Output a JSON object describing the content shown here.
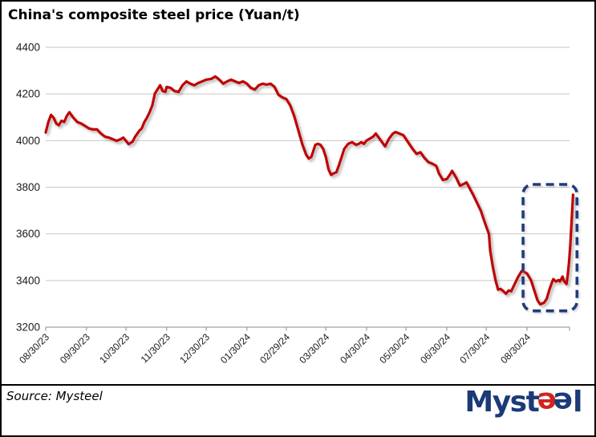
{
  "title": "China's composite steel price (Yuan/t)",
  "source_label": "Source:  Mysteel",
  "logo": {
    "prefix": "Myst",
    "e1": "e",
    "e2": "e",
    "suffix": "l",
    "navy": "#1B3A77",
    "red": "#D2231E"
  },
  "chart_data": {
    "type": "line",
    "title": "China's composite steel price (Yuan/t)",
    "ylabel": "Yuan/t",
    "ylim": [
      3200,
      4400
    ],
    "yticks": [
      3200,
      3400,
      3600,
      3800,
      4000,
      4200,
      4400
    ],
    "grid": "horizontal",
    "legend": "none",
    "line_color": "#C00000",
    "gridline_color": "#C6C6C6",
    "axis_color": "#8E8E8E",
    "annotation_box": {
      "purpose": "highlight of recent low and sharp rebound",
      "date_start": "2024-08-27",
      "date_end": "2024-10-07",
      "value_low": 3270,
      "value_high": 3812,
      "color": "#1F3D7C",
      "style": "dashed-rounded"
    },
    "xticks": [
      {
        "label": "08/30/23",
        "date": "2023-08-30"
      },
      {
        "label": "09/30/23",
        "date": "2023-09-30"
      },
      {
        "label": "10/30/23",
        "date": "2023-10-30"
      },
      {
        "label": "11/30/23",
        "date": "2023-11-30"
      },
      {
        "label": "12/30/23",
        "date": "2023-12-30"
      },
      {
        "label": "01/30/24",
        "date": "2024-01-30"
      },
      {
        "label": "02/29/24",
        "date": "2024-02-29"
      },
      {
        "label": "03/30/24",
        "date": "2024-03-30"
      },
      {
        "label": "04/30/24",
        "date": "2024-04-30"
      },
      {
        "label": "05/30/24",
        "date": "2024-05-30"
      },
      {
        "label": "06/30/24",
        "date": "2024-06-30"
      },
      {
        "label": "07/30/24",
        "date": "2024-07-30"
      },
      {
        "label": "08/30/24",
        "date": "2024-08-30"
      }
    ],
    "series": [
      {
        "name": "China's composite steel price (Yuan/t)",
        "points": [
          {
            "d": "2023-08-30",
            "v": 4035
          },
          {
            "d": "2023-09-01",
            "v": 4080
          },
          {
            "d": "2023-09-03",
            "v": 4110
          },
          {
            "d": "2023-09-05",
            "v": 4098
          },
          {
            "d": "2023-09-07",
            "v": 4073
          },
          {
            "d": "2023-09-09",
            "v": 4066
          },
          {
            "d": "2023-09-11",
            "v": 4085
          },
          {
            "d": "2023-09-13",
            "v": 4080
          },
          {
            "d": "2023-09-15",
            "v": 4105
          },
          {
            "d": "2023-09-17",
            "v": 4122
          },
          {
            "d": "2023-09-20",
            "v": 4098
          },
          {
            "d": "2023-09-23",
            "v": 4080
          },
          {
            "d": "2023-09-26",
            "v": 4073
          },
          {
            "d": "2023-09-28",
            "v": 4066
          },
          {
            "d": "2023-09-30",
            "v": 4059
          },
          {
            "d": "2023-10-02",
            "v": 4052
          },
          {
            "d": "2023-10-05",
            "v": 4048
          },
          {
            "d": "2023-10-08",
            "v": 4048
          },
          {
            "d": "2023-10-11",
            "v": 4030
          },
          {
            "d": "2023-10-14",
            "v": 4017
          },
          {
            "d": "2023-10-17",
            "v": 4013
          },
          {
            "d": "2023-10-20",
            "v": 4006
          },
          {
            "d": "2023-10-23",
            "v": 3999
          },
          {
            "d": "2023-10-26",
            "v": 4006
          },
          {
            "d": "2023-10-28",
            "v": 4013
          },
          {
            "d": "2023-10-30",
            "v": 3999
          },
          {
            "d": "2023-11-01",
            "v": 3985
          },
          {
            "d": "2023-11-04",
            "v": 3995
          },
          {
            "d": "2023-11-06",
            "v": 4017
          },
          {
            "d": "2023-11-09",
            "v": 4041
          },
          {
            "d": "2023-11-11",
            "v": 4052
          },
          {
            "d": "2023-11-13",
            "v": 4080
          },
          {
            "d": "2023-11-15",
            "v": 4098
          },
          {
            "d": "2023-11-17",
            "v": 4122
          },
          {
            "d": "2023-11-19",
            "v": 4150
          },
          {
            "d": "2023-11-21",
            "v": 4202
          },
          {
            "d": "2023-11-23",
            "v": 4219
          },
          {
            "d": "2023-11-25",
            "v": 4237
          },
          {
            "d": "2023-11-27",
            "v": 4212
          },
          {
            "d": "2023-11-29",
            "v": 4209
          },
          {
            "d": "2023-11-30",
            "v": 4230
          },
          {
            "d": "2023-12-03",
            "v": 4226
          },
          {
            "d": "2023-12-06",
            "v": 4212
          },
          {
            "d": "2023-12-09",
            "v": 4209
          },
          {
            "d": "2023-12-12",
            "v": 4237
          },
          {
            "d": "2023-12-15",
            "v": 4254
          },
          {
            "d": "2023-12-18",
            "v": 4244
          },
          {
            "d": "2023-12-21",
            "v": 4237
          },
          {
            "d": "2023-12-24",
            "v": 4247
          },
          {
            "d": "2023-12-27",
            "v": 4254
          },
          {
            "d": "2023-12-30",
            "v": 4261
          },
          {
            "d": "2024-01-03",
            "v": 4265
          },
          {
            "d": "2024-01-06",
            "v": 4275
          },
          {
            "d": "2024-01-09",
            "v": 4261
          },
          {
            "d": "2024-01-12",
            "v": 4244
          },
          {
            "d": "2024-01-15",
            "v": 4254
          },
          {
            "d": "2024-01-18",
            "v": 4261
          },
          {
            "d": "2024-01-21",
            "v": 4254
          },
          {
            "d": "2024-01-24",
            "v": 4247
          },
          {
            "d": "2024-01-27",
            "v": 4254
          },
          {
            "d": "2024-01-30",
            "v": 4244
          },
          {
            "d": "2024-02-02",
            "v": 4226
          },
          {
            "d": "2024-02-05",
            "v": 4219
          },
          {
            "d": "2024-02-08",
            "v": 4237
          },
          {
            "d": "2024-02-11",
            "v": 4244
          },
          {
            "d": "2024-02-14",
            "v": 4240
          },
          {
            "d": "2024-02-17",
            "v": 4244
          },
          {
            "d": "2024-02-20",
            "v": 4230
          },
          {
            "d": "2024-02-23",
            "v": 4196
          },
          {
            "d": "2024-02-26",
            "v": 4185
          },
          {
            "d": "2024-02-29",
            "v": 4178
          },
          {
            "d": "2024-03-03",
            "v": 4150
          },
          {
            "d": "2024-03-06",
            "v": 4105
          },
          {
            "d": "2024-03-09",
            "v": 4045
          },
          {
            "d": "2024-03-12",
            "v": 3986
          },
          {
            "d": "2024-03-15",
            "v": 3940
          },
          {
            "d": "2024-03-17",
            "v": 3923
          },
          {
            "d": "2024-03-19",
            "v": 3930
          },
          {
            "d": "2024-03-22",
            "v": 3982
          },
          {
            "d": "2024-03-24",
            "v": 3986
          },
          {
            "d": "2024-03-26",
            "v": 3982
          },
          {
            "d": "2024-03-28",
            "v": 3964
          },
          {
            "d": "2024-03-30",
            "v": 3930
          },
          {
            "d": "2024-04-01",
            "v": 3877
          },
          {
            "d": "2024-04-03",
            "v": 3853
          },
          {
            "d": "2024-04-05",
            "v": 3860
          },
          {
            "d": "2024-04-07",
            "v": 3864
          },
          {
            "d": "2024-04-09",
            "v": 3895
          },
          {
            "d": "2024-04-11",
            "v": 3930
          },
          {
            "d": "2024-04-13",
            "v": 3964
          },
          {
            "d": "2024-04-16",
            "v": 3986
          },
          {
            "d": "2024-04-19",
            "v": 3993
          },
          {
            "d": "2024-04-22",
            "v": 3982
          },
          {
            "d": "2024-04-24",
            "v": 3986
          },
          {
            "d": "2024-04-26",
            "v": 3993
          },
          {
            "d": "2024-04-28",
            "v": 3986
          },
          {
            "d": "2024-04-30",
            "v": 4000
          },
          {
            "d": "2024-05-03",
            "v": 4010
          },
          {
            "d": "2024-05-05",
            "v": 4017
          },
          {
            "d": "2024-05-07",
            "v": 4030
          },
          {
            "d": "2024-05-11",
            "v": 3999
          },
          {
            "d": "2024-05-14",
            "v": 3975
          },
          {
            "d": "2024-05-17",
            "v": 4008
          },
          {
            "d": "2024-05-20",
            "v": 4030
          },
          {
            "d": "2024-05-22",
            "v": 4037
          },
          {
            "d": "2024-05-25",
            "v": 4030
          },
          {
            "d": "2024-05-28",
            "v": 4023
          },
          {
            "d": "2024-06-01",
            "v": 3989
          },
          {
            "d": "2024-06-04",
            "v": 3964
          },
          {
            "d": "2024-06-07",
            "v": 3943
          },
          {
            "d": "2024-06-10",
            "v": 3950
          },
          {
            "d": "2024-06-13",
            "v": 3926
          },
          {
            "d": "2024-06-16",
            "v": 3908
          },
          {
            "d": "2024-06-19",
            "v": 3901
          },
          {
            "d": "2024-06-22",
            "v": 3891
          },
          {
            "d": "2024-06-24",
            "v": 3859
          },
          {
            "d": "2024-06-27",
            "v": 3831
          },
          {
            "d": "2024-06-30",
            "v": 3835
          },
          {
            "d": "2024-07-03",
            "v": 3859
          },
          {
            "d": "2024-07-04",
            "v": 3870
          },
          {
            "d": "2024-07-07",
            "v": 3842
          },
          {
            "d": "2024-07-10",
            "v": 3807
          },
          {
            "d": "2024-07-13",
            "v": 3814
          },
          {
            "d": "2024-07-15",
            "v": 3821
          },
          {
            "d": "2024-07-18",
            "v": 3789
          },
          {
            "d": "2024-07-20",
            "v": 3768
          },
          {
            "d": "2024-07-23",
            "v": 3733
          },
          {
            "d": "2024-07-26",
            "v": 3698
          },
          {
            "d": "2024-07-28",
            "v": 3663
          },
          {
            "d": "2024-07-30",
            "v": 3631
          },
          {
            "d": "2024-08-01",
            "v": 3600
          },
          {
            "d": "2024-08-02",
            "v": 3528
          },
          {
            "d": "2024-08-04",
            "v": 3458
          },
          {
            "d": "2024-08-06",
            "v": 3402
          },
          {
            "d": "2024-08-08",
            "v": 3361
          },
          {
            "d": "2024-08-10",
            "v": 3364
          },
          {
            "d": "2024-08-12",
            "v": 3354
          },
          {
            "d": "2024-08-14",
            "v": 3343
          },
          {
            "d": "2024-08-16",
            "v": 3357
          },
          {
            "d": "2024-08-18",
            "v": 3354
          },
          {
            "d": "2024-08-21",
            "v": 3389
          },
          {
            "d": "2024-08-23",
            "v": 3413
          },
          {
            "d": "2024-08-26",
            "v": 3441
          },
          {
            "d": "2024-08-28",
            "v": 3437
          },
          {
            "d": "2024-08-30",
            "v": 3430
          },
          {
            "d": "2024-09-02",
            "v": 3402
          },
          {
            "d": "2024-09-05",
            "v": 3350
          },
          {
            "d": "2024-09-07",
            "v": 3315
          },
          {
            "d": "2024-09-09",
            "v": 3298
          },
          {
            "d": "2024-09-12",
            "v": 3305
          },
          {
            "d": "2024-09-14",
            "v": 3322
          },
          {
            "d": "2024-09-16",
            "v": 3361
          },
          {
            "d": "2024-09-18",
            "v": 3392
          },
          {
            "d": "2024-09-19",
            "v": 3406
          },
          {
            "d": "2024-09-21",
            "v": 3396
          },
          {
            "d": "2024-09-23",
            "v": 3402
          },
          {
            "d": "2024-09-24",
            "v": 3396
          },
          {
            "d": "2024-09-26",
            "v": 3417
          },
          {
            "d": "2024-09-27",
            "v": 3399
          },
          {
            "d": "2024-09-29",
            "v": 3385
          },
          {
            "d": "2024-09-30",
            "v": 3424
          },
          {
            "d": "2024-10-01",
            "v": 3483
          },
          {
            "d": "2024-10-02",
            "v": 3560
          },
          {
            "d": "2024-10-03",
            "v": 3660
          },
          {
            "d": "2024-10-04",
            "v": 3768
          }
        ]
      }
    ]
  }
}
